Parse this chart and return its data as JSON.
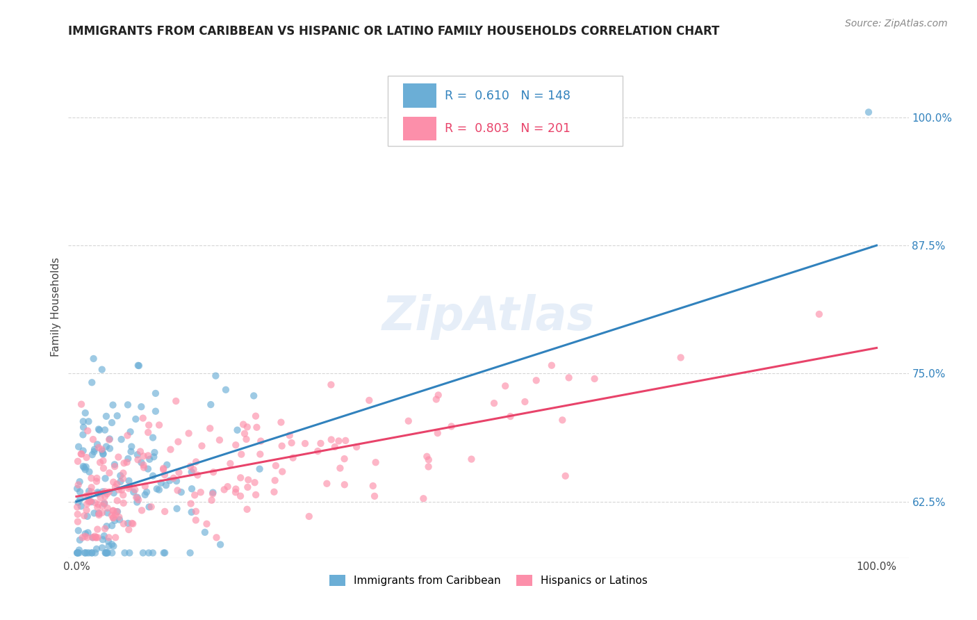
{
  "title": "IMMIGRANTS FROM CARIBBEAN VS HISPANIC OR LATINO FAMILY HOUSEHOLDS CORRELATION CHART",
  "source": "Source: ZipAtlas.com",
  "ylabel": "Family Households",
  "ytick_labels": [
    "62.5%",
    "75.0%",
    "87.5%",
    "100.0%"
  ],
  "ytick_values": [
    0.625,
    0.75,
    0.875,
    1.0
  ],
  "legend_label1": "Immigrants from Caribbean",
  "legend_label2": "Hispanics or Latinos",
  "R1": 0.61,
  "N1": 148,
  "R2": 0.803,
  "N2": 201,
  "color_blue": "#6baed6",
  "color_pink": "#fc8faa",
  "color_blue_line": "#3182bd",
  "color_pink_line": "#e8436a",
  "color_blue_text": "#3182bd",
  "color_pink_text": "#e8436a",
  "watermark_text": "ZipAtlas",
  "bg_color": "#ffffff",
  "grid_color": "#cccccc",
  "scatter_alpha": 0.65,
  "scatter_size": 55,
  "blue_line_x0": 0.0,
  "blue_line_x1": 1.0,
  "blue_line_y0": 0.625,
  "blue_line_y1": 0.875,
  "pink_line_x0": 0.0,
  "pink_line_x1": 1.0,
  "pink_line_y0": 0.63,
  "pink_line_y1": 0.775,
  "ymin": 0.57,
  "ymax": 1.06,
  "xmin": -0.01,
  "xmax": 1.04
}
